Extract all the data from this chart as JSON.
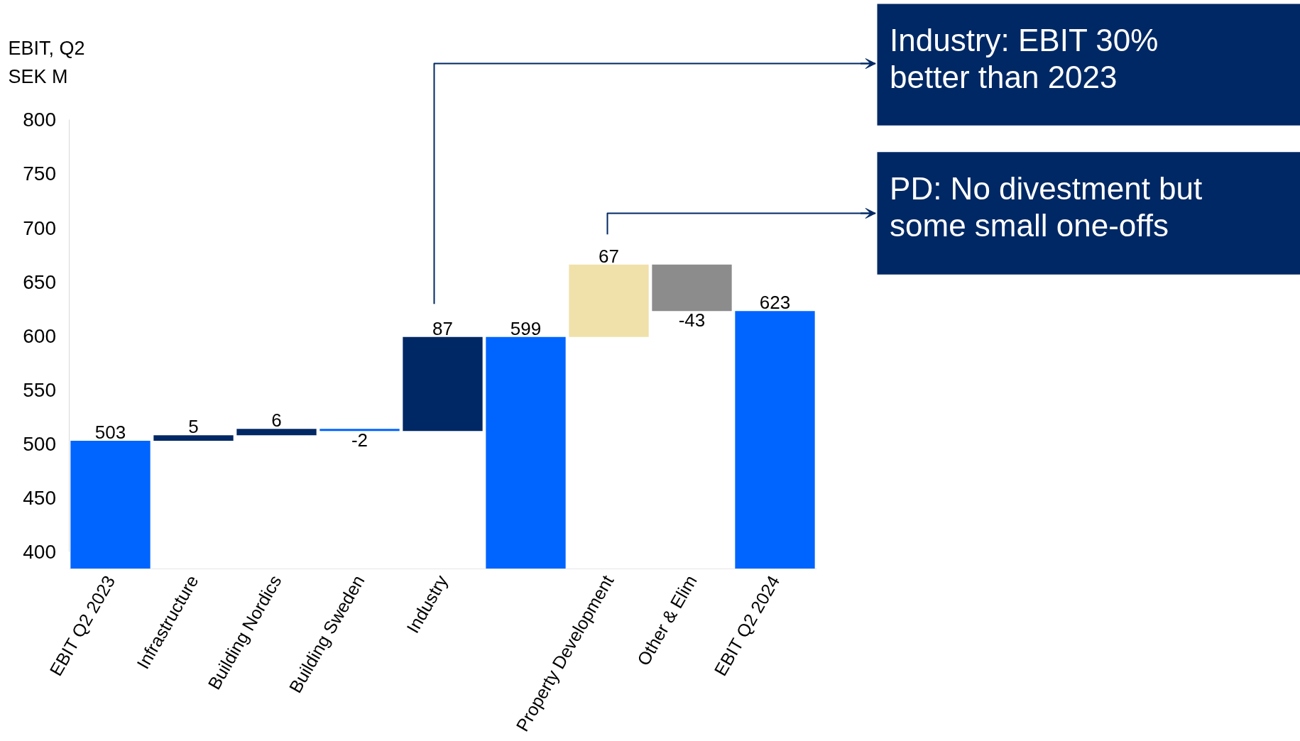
{
  "chart_data": {
    "type": "bar",
    "ylabel": "EBIT, Q2\nSEK M",
    "categories": [
      "EBIT Q2 2023",
      "Infrastructure",
      "Building Nordics",
      "Building Sweden",
      "Industry",
      null,
      "Property Development",
      "Other & Elim",
      "EBIT Q2 2024"
    ],
    "values": [
      503,
      5,
      6,
      -2,
      87,
      599,
      67,
      -43,
      623
    ],
    "base": [
      null,
      503,
      508,
      514,
      512,
      null,
      599,
      666,
      null
    ],
    "colors": [
      "#0064ff",
      "#002864",
      "#002864",
      "#0064ff",
      "#002864",
      "#0064ff",
      "#f0e1aa",
      "#8c8c8c",
      "#0064ff"
    ],
    "ylim": [
      400,
      800
    ],
    "yticks": [
      400,
      450,
      500,
      550,
      600,
      650,
      700,
      750,
      800
    ],
    "data_labels": true,
    "grid": false,
    "annotations": [
      "Industry: EBIT 30%\nbetter than 2023",
      "PD: No divestment but\nsome small one-offs"
    ]
  }
}
